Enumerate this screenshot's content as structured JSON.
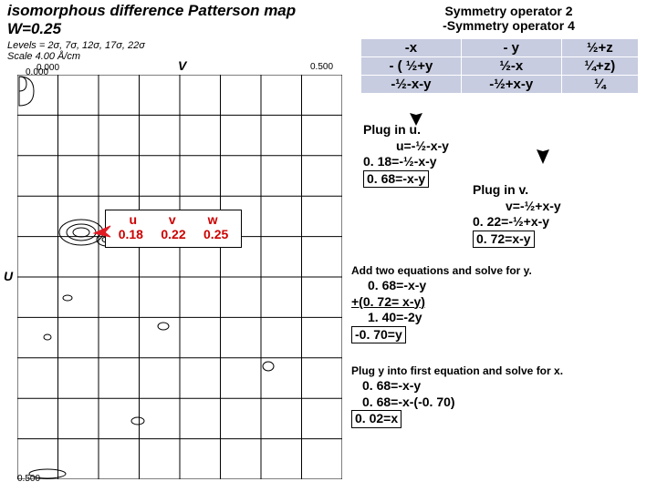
{
  "title": {
    "main": "isomorphous difference Patterson map",
    "sub": "W=0.25",
    "levels": "Levels = 2σ, 7σ, 12σ, 17σ, 22σ",
    "scale": "Scale 4.00 Å/cm"
  },
  "axes": {
    "v": "V",
    "u": "U",
    "tick0": "0.000",
    "tick5": "0.500"
  },
  "grid": {
    "cols": 8,
    "rows": 10,
    "line_color": "#000000",
    "line_width": 1
  },
  "uvw": {
    "headers": [
      "u",
      "v",
      "w"
    ],
    "values": [
      "0.18",
      "0.22",
      "0.25"
    ],
    "color": "#cc0000"
  },
  "symmetry": {
    "line1": "Symmetry operator 2",
    "line2": "-Symmetry operator 4",
    "rows": [
      [
        "-x",
        "- y",
        "½+z"
      ],
      [
        "- ( ½+y",
        "½-x",
        "¼+z)"
      ],
      [
        "-½-x-y",
        "-½+x-y",
        "¼"
      ]
    ]
  },
  "plug_u": {
    "label": "Plug in u.",
    "l1": "u=-½-x-y",
    "l2": "0. 18=-½-x-y",
    "l3": "0. 68=-x-y"
  },
  "plug_v": {
    "label": "Plug in v.",
    "l1": "v=-½+x-y",
    "l2": "0. 22=-½+x-y",
    "l3": "0. 72=x-y"
  },
  "solve_y": {
    "label": "Add two equations and solve for y.",
    "l1": "0. 68=-x-y",
    "l2": "+(0. 72= x-y)",
    "l3": "1. 40=-2y",
    "l4": "-0. 70=y"
  },
  "solve_x": {
    "label": "Plug y into first equation and solve for x.",
    "l1": "0. 68=-x-y",
    "l2": "0. 68=-x-(-0. 70)",
    "l3": "0. 02=x"
  },
  "colors": {
    "table_bg": "#c7cce0",
    "arrow": "#000000",
    "arrow_red": "#e01b24"
  }
}
